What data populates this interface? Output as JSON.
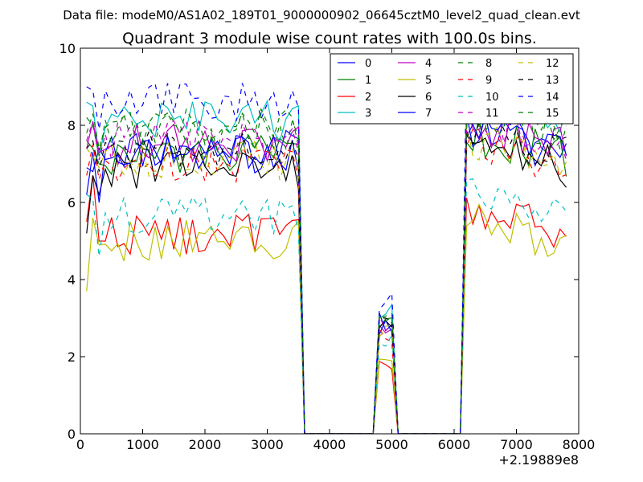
{
  "chart_data": {
    "type": "line",
    "suptitle": "Data file: modeM0/AS1A02_189T01_9000000902_06645cztM0_level2_quad_clean.evt",
    "title": "Quadrant 3 module wise count rates with 100.0s bins.",
    "xlabel": "",
    "ylabel": "",
    "x_offset_label": "+2.19889e8",
    "xlim": [
      0,
      8000
    ],
    "ylim": [
      0,
      10
    ],
    "xticks": [
      0,
      1000,
      2000,
      3000,
      4000,
      5000,
      6000,
      7000,
      8000
    ],
    "yticks": [
      0,
      2,
      4,
      6,
      8,
      10
    ],
    "legend": {
      "position": "top-right",
      "columns": 4
    },
    "time_bins": [
      {
        "x_start": 100,
        "x_end": 3500,
        "count": 35
      },
      {
        "x_start": 3600,
        "x_end": 4700,
        "count": 12
      },
      {
        "x_start": 4800,
        "x_end": 5000,
        "count": 3
      },
      {
        "x_start": 5100,
        "x_end": 6100,
        "count": 11
      },
      {
        "x_start": 6200,
        "x_end": 7800,
        "count": 17
      }
    ],
    "series": [
      {
        "name": "0",
        "color": "#0000ff",
        "dash": "solid",
        "on_level": 7.4,
        "peak_level": 2.9,
        "seg1_levels": [
          6.9,
          6.8,
          7.4
        ]
      },
      {
        "name": "1",
        "color": "#008000",
        "dash": "solid",
        "on_level": 7.2,
        "peak_level": 2.8,
        "seg1_levels": [
          7.6,
          7.4,
          7.0
        ]
      },
      {
        "name": "2",
        "color": "#ff0000",
        "dash": "solid",
        "on_level": 5.2,
        "peak_level": 1.7,
        "seg1_levels": [
          5.5,
          6.7,
          5.0
        ]
      },
      {
        "name": "3",
        "color": "#00bfbf",
        "dash": "solid",
        "on_level": 8.1,
        "peak_level": 3.1,
        "seg1_levels": [
          8.6,
          8.5,
          7.2
        ]
      },
      {
        "name": "4",
        "color": "#bf00bf",
        "dash": "solid",
        "on_level": 7.5,
        "peak_level": 2.7,
        "seg1_levels": [
          7.4,
          8.1,
          7.3
        ]
      },
      {
        "name": "5",
        "color": "#bfbf00",
        "dash": "solid",
        "on_level": 5.0,
        "peak_level": 2.1,
        "seg1_levels": [
          3.7,
          5.6,
          4.9
        ]
      },
      {
        "name": "6",
        "color": "#000000",
        "dash": "solid",
        "on_level": 6.9,
        "peak_level": 2.7,
        "seg1_levels": [
          5.2,
          6.7,
          6.2
        ]
      },
      {
        "name": "7",
        "color": "#0000ff",
        "dash": "solid",
        "on_level": 7.3,
        "peak_level": 2.8,
        "seg1_levels": [
          6.2,
          7.3,
          6.0
        ]
      },
      {
        "name": "8",
        "color": "#008000",
        "dash": "dashed",
        "on_level": 7.9,
        "peak_level": 3.0,
        "seg1_levels": [
          7.8,
          8.3,
          7.4
        ]
      },
      {
        "name": "9",
        "color": "#ff0000",
        "dash": "dashed",
        "on_level": 7.0,
        "peak_level": 2.5,
        "seg1_levels": [
          6.7,
          7.5,
          6.6
        ]
      },
      {
        "name": "10",
        "color": "#00bfbf",
        "dash": "dashed",
        "on_level": 5.6,
        "peak_level": 2.4,
        "seg1_levels": [
          6.2,
          6.1,
          4.6
        ]
      },
      {
        "name": "11",
        "color": "#bf00bf",
        "dash": "dashed",
        "on_level": 7.6,
        "peak_level": 2.9,
        "seg1_levels": [
          7.6,
          8.1,
          7.1
        ]
      },
      {
        "name": "12",
        "color": "#bfbf00",
        "dash": "dashed",
        "on_level": 7.1,
        "peak_level": 2.6,
        "seg1_levels": [
          7.4,
          7.2,
          6.9
        ]
      },
      {
        "name": "13",
        "color": "#000000",
        "dash": "dashed",
        "on_level": 7.3,
        "peak_level": 2.9,
        "seg1_levels": [
          7.4,
          7.6,
          6.8
        ]
      },
      {
        "name": "14",
        "color": "#0000ff",
        "dash": "dashed",
        "on_level": 8.6,
        "peak_level": 3.4,
        "seg1_levels": [
          9.0,
          8.9,
          7.9
        ]
      },
      {
        "name": "15",
        "color": "#008000",
        "dash": "dashed",
        "on_level": 7.8,
        "peak_level": 3.0,
        "seg1_levels": [
          8.2,
          8.0,
          7.2
        ]
      }
    ]
  }
}
